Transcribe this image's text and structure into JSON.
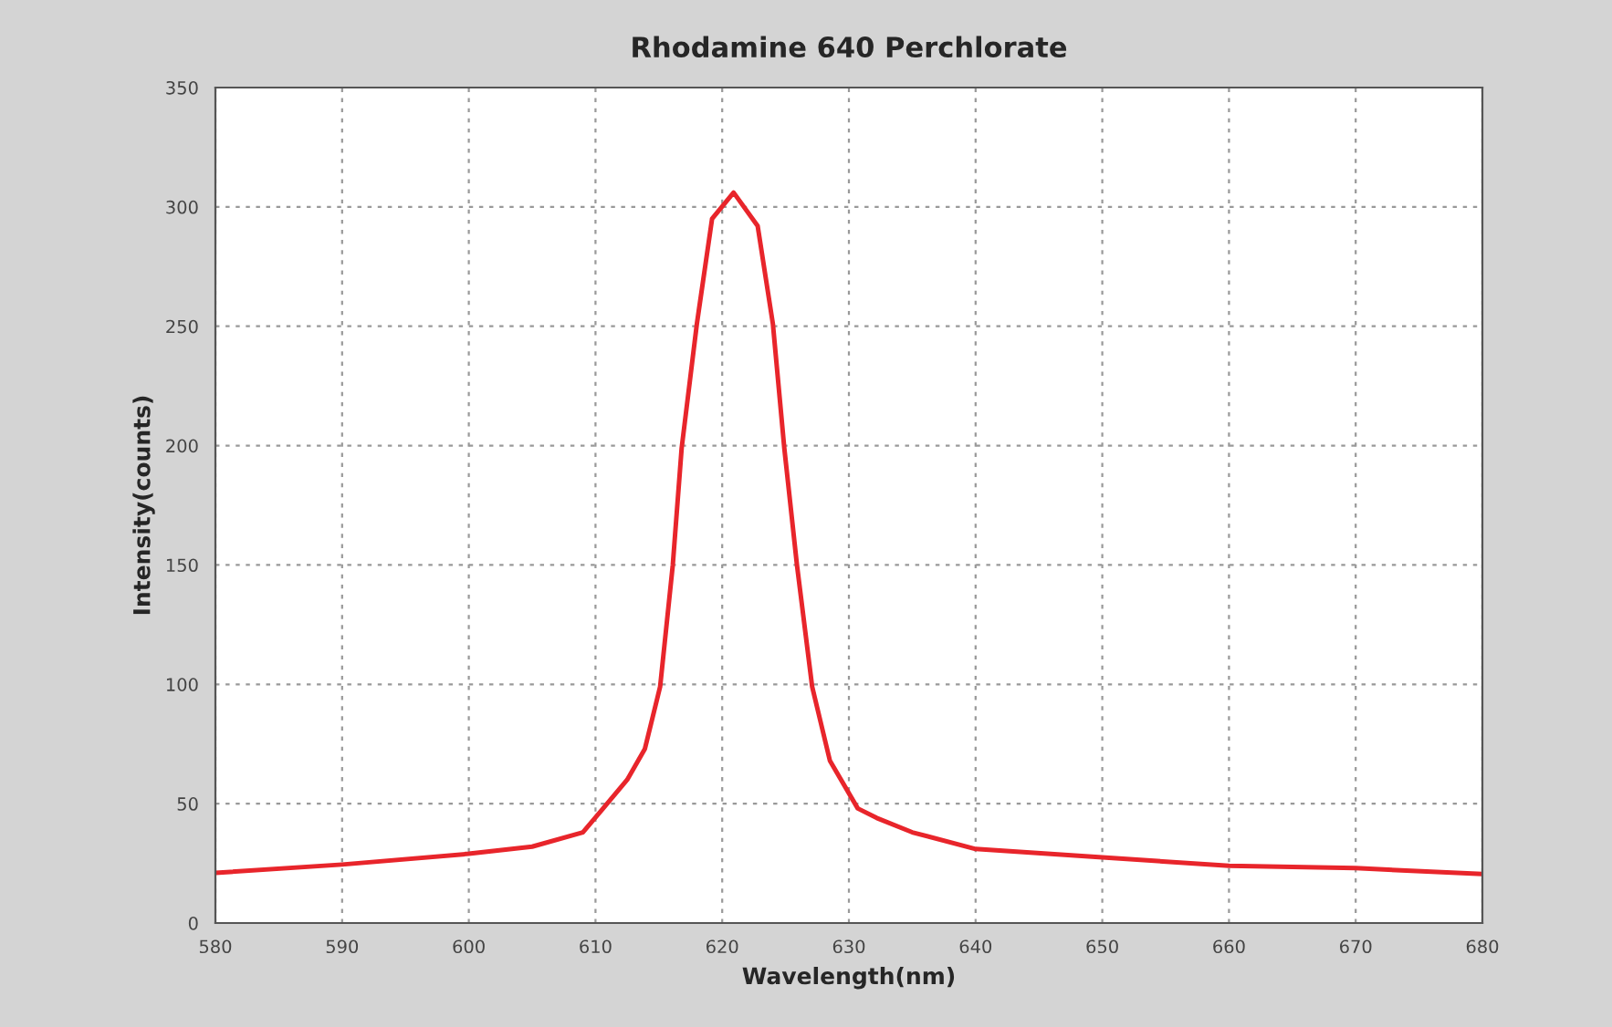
{
  "chart_data": {
    "type": "line",
    "title": "Rhodamine 640 Perchlorate",
    "xlabel": "Wavelength(nm)",
    "ylabel": "Intensity(counts)",
    "series": [
      {
        "color": "#e8252b",
        "x": [
          580,
          590,
          600,
          605,
          609,
          610.6,
          612.5,
          613.9,
          615.1,
          616.1,
          616.8,
          618.0,
          619.2,
          620.9,
          622.8,
          624.0,
          624.9,
          625.9,
          627.1,
          628.5,
          630.7,
          632.2,
          635,
          640,
          650,
          660,
          670,
          680
        ],
        "values": [
          21,
          24.5,
          29,
          32,
          38,
          48,
          60,
          73,
          99,
          150,
          199,
          251,
          295,
          306,
          292,
          251,
          199,
          150,
          99,
          68,
          48,
          44,
          38,
          31,
          27.5,
          24,
          23,
          20.5
        ]
      }
    ],
    "xlim": [
      580,
      680
    ],
    "xticks": [
      580,
      590,
      600,
      610,
      620,
      630,
      640,
      650,
      660,
      670,
      680
    ],
    "ylim": [
      0,
      350
    ],
    "yticks": [
      0,
      50,
      100,
      150,
      200,
      250,
      300,
      350
    ],
    "grid": true,
    "line_style": "solid",
    "marker": "none"
  }
}
